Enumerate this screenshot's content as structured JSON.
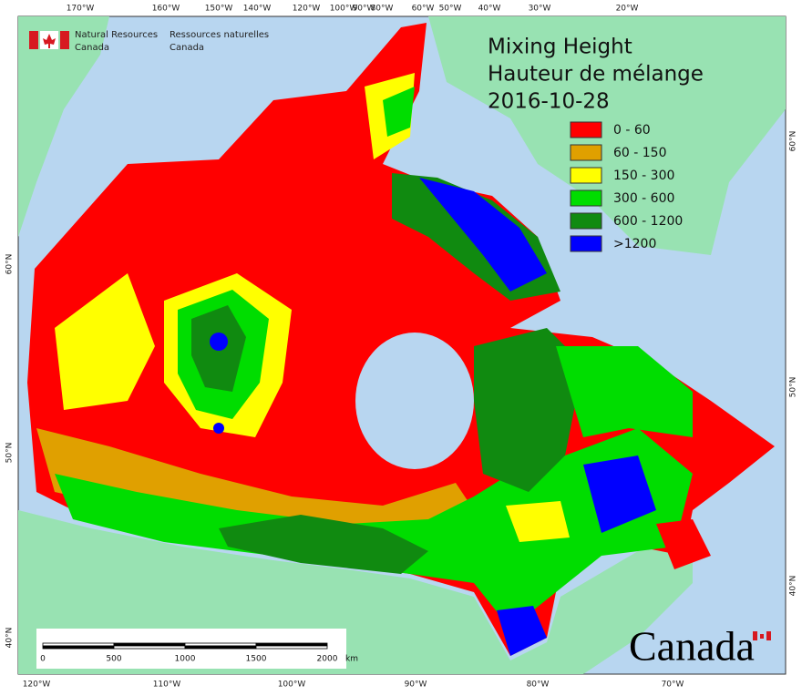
{
  "header": {
    "english": [
      "Natural Resources",
      "Canada"
    ],
    "french": [
      "Ressources naturelles",
      "Canada"
    ]
  },
  "title": [
    "Mixing Height",
    "Hauteur de mélange",
    "2016-10-28"
  ],
  "legend": [
    {
      "label": "0 - 60",
      "color": "#ff0000"
    },
    {
      "label": "60 - 150",
      "color": "#e0a000"
    },
    {
      "label": "150 - 300",
      "color": "#ffff00"
    },
    {
      "label": "300 - 600",
      "color": "#00dd00"
    },
    {
      "label": "600 - 1200",
      "color": "#108a10"
    },
    {
      "label": ">1200",
      "color": "#0000ff"
    }
  ],
  "graticule": {
    "top": [
      "170°W",
      "160°W",
      "150°W",
      "140°W",
      "120°W",
      "100°W",
      "90°W",
      "80°W",
      "60°W",
      "50°W",
      "40°W",
      "30°W",
      "20°W"
    ],
    "bottom": [
      "120°W",
      "110°W",
      "100°W",
      "90°W",
      "80°W",
      "70°W"
    ],
    "left": [
      "60°N",
      "50°N",
      "40°N"
    ],
    "right": [
      "60°N",
      "50°N",
      "40°N"
    ]
  },
  "scale_bar": {
    "labels": [
      "0",
      "500",
      "1000",
      "1500",
      "2000"
    ],
    "unit": "km"
  },
  "wordmark": "Canada"
}
